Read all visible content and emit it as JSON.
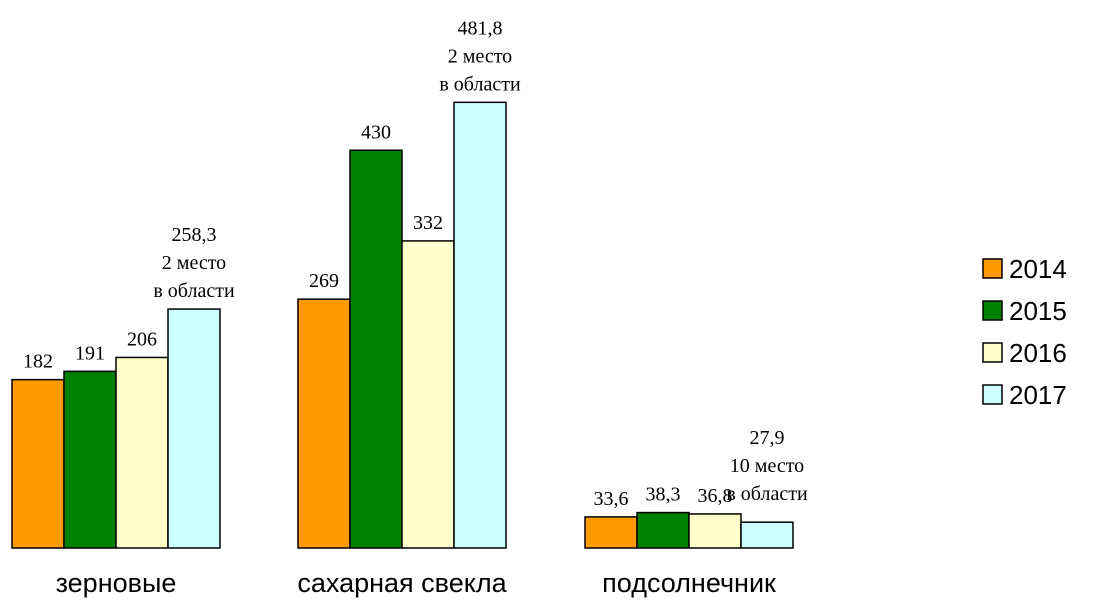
{
  "chart_data": {
    "type": "bar",
    "categories": [
      "зерновые",
      "сахарная свекла",
      "подсолнечник"
    ],
    "series": [
      {
        "name": "2014",
        "color": "#FF9900",
        "values": [
          182,
          269,
          33.6
        ],
        "labels": [
          "182",
          "269",
          "33,6"
        ]
      },
      {
        "name": "2015",
        "color": "#008000",
        "values": [
          191,
          430,
          38.3
        ],
        "labels": [
          "191",
          "430",
          "38,3"
        ]
      },
      {
        "name": "2016",
        "color": "#FFFFCC",
        "values": [
          206,
          332,
          36.8
        ],
        "labels": [
          "206",
          "332",
          "36,8"
        ]
      },
      {
        "name": "2017",
        "color": "#CCFFFF",
        "values": [
          258.3,
          481.8,
          27.9
        ],
        "labels": [
          "258,3",
          "481,8",
          "27,9"
        ]
      }
    ],
    "annotations": [
      {
        "category": "зерновые",
        "series": "2017",
        "lines": [
          "2 место",
          "в области"
        ]
      },
      {
        "category": "сахарная свекла",
        "series": "2017",
        "lines": [
          "2 место",
          "в области"
        ]
      },
      {
        "category": "подсолнечник",
        "series": "2017",
        "lines": [
          "10 место",
          "в области"
        ]
      }
    ],
    "legend_position": "right",
    "grid": false,
    "title": "",
    "xlabel": "",
    "ylabel": ""
  }
}
